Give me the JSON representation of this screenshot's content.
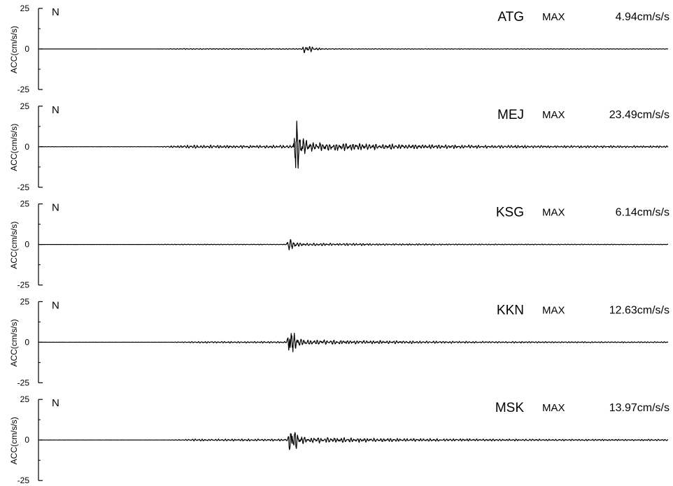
{
  "chart_data": {
    "type": "line",
    "component": "N",
    "max_label": "MAX",
    "ylabel": "ACC(cm/s/s)",
    "ylim": [
      -25,
      25
    ],
    "yticks": [
      {
        "value": 25,
        "label": "25"
      },
      {
        "value": 0,
        "label": "0"
      },
      {
        "value": -25,
        "label": "-25"
      }
    ],
    "panels": [
      {
        "station": "ATG",
        "max_text": "4.94cm/s/s",
        "max": 4.94,
        "onset": 0.418,
        "pre_noise": 0.06,
        "coda": 0.05,
        "decay": 0.045,
        "start_noise": 0.18
      },
      {
        "station": "MEJ",
        "max_text": "23.49cm/s/s",
        "max": 23.49,
        "onset": 0.403,
        "pre_noise": 0.035,
        "coda": 0.11,
        "decay": 0.16,
        "start_noise": 0.18
      },
      {
        "station": "KSG",
        "max_text": "6.14cm/s/s",
        "max": 6.14,
        "onset": 0.392,
        "pre_noise": 0.03,
        "coda": 0.14,
        "decay": 0.2,
        "start_noise": 0.16
      },
      {
        "station": "KKN",
        "max_text": "12.63cm/s/s",
        "max": 12.63,
        "onset": 0.393,
        "pre_noise": 0.035,
        "coda": 0.12,
        "decay": 0.16,
        "start_noise": 0.2
      },
      {
        "station": "MSK",
        "max_text": "13.97cm/s/s",
        "max": 13.97,
        "onset": 0.395,
        "pre_noise": 0.04,
        "coda": 0.12,
        "decay": 0.17,
        "start_noise": 0.2
      }
    ]
  }
}
